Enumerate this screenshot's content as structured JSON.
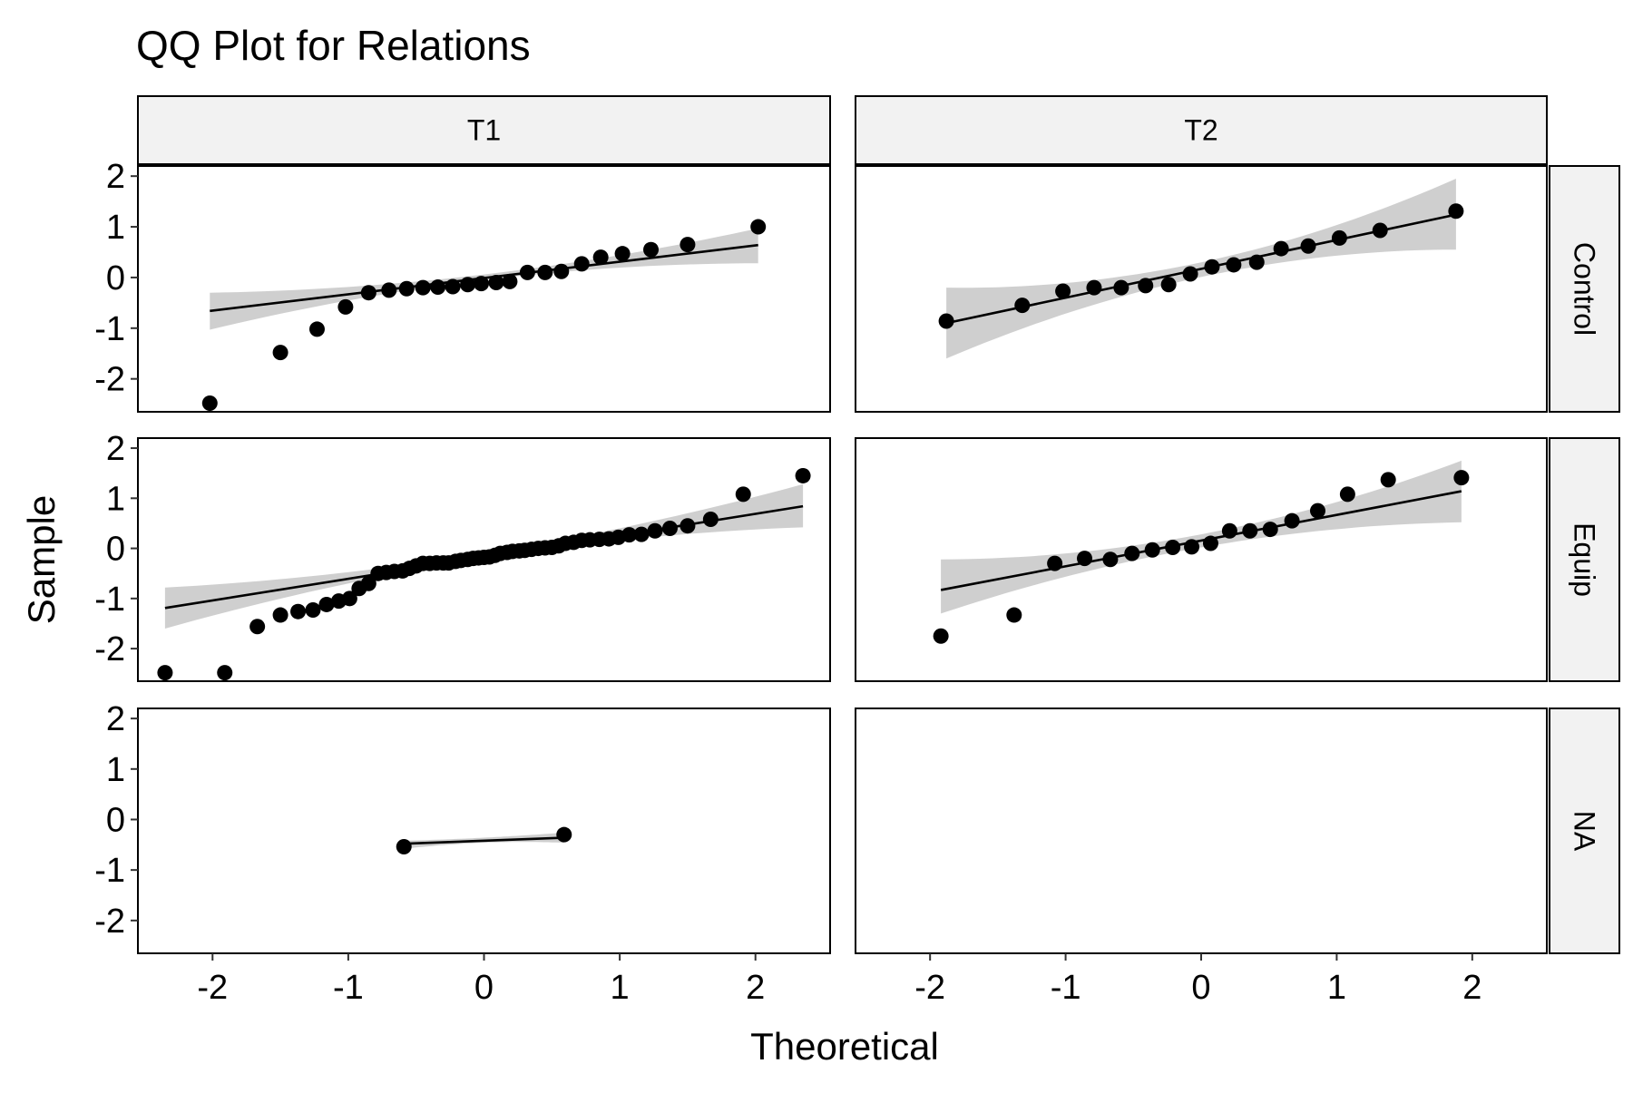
{
  "chart_data": {
    "type": "scatter",
    "title": "QQ Plot for Relations",
    "xlabel": "Theoretical",
    "ylabel": "Sample",
    "xlim": [
      -2.55,
      2.55
    ],
    "ylim": [
      -2.65,
      2.2
    ],
    "x_ticks": [
      -2,
      -1,
      0,
      1,
      2
    ],
    "x_tick_labels": [
      "-2",
      "-1",
      "0",
      "1",
      "2"
    ],
    "y_ticks": [
      -2,
      -1,
      0,
      1,
      2
    ],
    "y_tick_labels": [
      "-2",
      "-1",
      "0",
      "1",
      "2"
    ],
    "grid": false,
    "legend": "none",
    "colors": {
      "points": "#000000",
      "line": "#000000",
      "band": "#cccccc",
      "strip_fill": "#f2f2f2",
      "panel_border": "#000000"
    },
    "facet_columns": [
      "T1",
      "T2"
    ],
    "facet_rows": [
      "Control",
      "Equip",
      "NA"
    ],
    "panels": [
      {
        "col": "T1",
        "row": "Control",
        "points": [
          [
            -2.02,
            -2.48
          ],
          [
            -1.5,
            -1.48
          ],
          [
            -1.23,
            -1.02
          ],
          [
            -1.02,
            -0.58
          ],
          [
            -0.85,
            -0.3
          ],
          [
            -0.7,
            -0.25
          ],
          [
            -0.57,
            -0.22
          ],
          [
            -0.45,
            -0.2
          ],
          [
            -0.34,
            -0.19
          ],
          [
            -0.23,
            -0.18
          ],
          [
            -0.12,
            -0.14
          ],
          [
            -0.02,
            -0.12
          ],
          [
            0.09,
            -0.1
          ],
          [
            0.19,
            -0.08
          ],
          [
            0.32,
            0.1
          ],
          [
            0.45,
            0.1
          ],
          [
            0.57,
            0.12
          ],
          [
            0.72,
            0.27
          ],
          [
            0.86,
            0.4
          ],
          [
            1.02,
            0.47
          ],
          [
            1.23,
            0.55
          ],
          [
            1.5,
            0.65
          ],
          [
            2.02,
            1.0
          ]
        ],
        "line": [
          [
            -2.02,
            -0.66
          ],
          [
            2.02,
            0.64
          ]
        ],
        "band": {
          "x": [
            -2.02,
            0,
            2.02
          ],
          "lower": [
            -1.03,
            -0.05,
            0.28
          ],
          "upper": [
            -0.3,
            0.06,
            0.97
          ]
        }
      },
      {
        "col": "T2",
        "row": "Control",
        "points": [
          [
            -1.88,
            -0.86
          ],
          [
            -1.32,
            -0.55
          ],
          [
            -1.02,
            -0.27
          ],
          [
            -0.79,
            -0.2
          ],
          [
            -0.59,
            -0.2
          ],
          [
            -0.41,
            -0.16
          ],
          [
            -0.24,
            -0.14
          ],
          [
            -0.08,
            0.07
          ],
          [
            0.08,
            0.21
          ],
          [
            0.24,
            0.25
          ],
          [
            0.41,
            0.3
          ],
          [
            0.59,
            0.57
          ],
          [
            0.79,
            0.62
          ],
          [
            1.02,
            0.78
          ],
          [
            1.32,
            0.93
          ],
          [
            1.88,
            1.31
          ]
        ],
        "line": [
          [
            -1.88,
            -0.9
          ],
          [
            1.88,
            1.24
          ]
        ],
        "band": {
          "x": [
            -1.88,
            0,
            1.88
          ],
          "lower": [
            -1.6,
            0.01,
            0.55
          ],
          "upper": [
            -0.2,
            0.3,
            1.95
          ]
        }
      },
      {
        "col": "T1",
        "row": "Equip",
        "points": [
          [
            -2.35,
            -2.48
          ],
          [
            -1.91,
            -2.48
          ],
          [
            -1.67,
            -1.56
          ],
          [
            -1.5,
            -1.33
          ],
          [
            -1.37,
            -1.26
          ],
          [
            -1.26,
            -1.23
          ],
          [
            -1.16,
            -1.12
          ],
          [
            -1.07,
            -1.05
          ],
          [
            -0.99,
            -1.0
          ],
          [
            -0.92,
            -0.8
          ],
          [
            -0.85,
            -0.7
          ],
          [
            -0.78,
            -0.5
          ],
          [
            -0.72,
            -0.48
          ],
          [
            -0.66,
            -0.46
          ],
          [
            -0.6,
            -0.45
          ],
          [
            -0.55,
            -0.4
          ],
          [
            -0.5,
            -0.35
          ],
          [
            -0.45,
            -0.3
          ],
          [
            -0.4,
            -0.3
          ],
          [
            -0.35,
            -0.29
          ],
          [
            -0.3,
            -0.29
          ],
          [
            -0.26,
            -0.29
          ],
          [
            -0.21,
            -0.26
          ],
          [
            -0.17,
            -0.24
          ],
          [
            -0.12,
            -0.22
          ],
          [
            -0.08,
            -0.2
          ],
          [
            -0.04,
            -0.19
          ],
          [
            0.0,
            -0.18
          ],
          [
            0.04,
            -0.17
          ],
          [
            0.08,
            -0.14
          ],
          [
            0.12,
            -0.1
          ],
          [
            0.17,
            -0.08
          ],
          [
            0.21,
            -0.06
          ],
          [
            0.26,
            -0.05
          ],
          [
            0.3,
            -0.04
          ],
          [
            0.35,
            -0.02
          ],
          [
            0.4,
            0.0
          ],
          [
            0.45,
            0.01
          ],
          [
            0.5,
            0.02
          ],
          [
            0.55,
            0.05
          ],
          [
            0.6,
            0.1
          ],
          [
            0.66,
            0.12
          ],
          [
            0.72,
            0.16
          ],
          [
            0.78,
            0.17
          ],
          [
            0.85,
            0.18
          ],
          [
            0.92,
            0.19
          ],
          [
            0.99,
            0.22
          ],
          [
            1.07,
            0.27
          ],
          [
            1.16,
            0.28
          ],
          [
            1.26,
            0.35
          ],
          [
            1.37,
            0.4
          ],
          [
            1.5,
            0.45
          ],
          [
            1.67,
            0.58
          ],
          [
            1.91,
            1.08
          ],
          [
            2.35,
            1.45
          ]
        ],
        "line": [
          [
            -2.35,
            -1.19
          ],
          [
            2.35,
            0.84
          ]
        ],
        "band": {
          "x": [
            -2.35,
            0,
            2.35
          ],
          "lower": [
            -1.6,
            -0.2,
            0.42
          ],
          "upper": [
            -0.78,
            -0.1,
            1.28
          ]
        }
      },
      {
        "col": "T2",
        "row": "Equip",
        "points": [
          [
            -1.92,
            -1.75
          ],
          [
            -1.38,
            -1.33
          ],
          [
            -1.08,
            -0.3
          ],
          [
            -0.86,
            -0.2
          ],
          [
            -0.67,
            -0.22
          ],
          [
            -0.51,
            -0.1
          ],
          [
            -0.36,
            -0.03
          ],
          [
            -0.21,
            0.02
          ],
          [
            -0.07,
            0.03
          ],
          [
            0.07,
            0.1
          ],
          [
            0.21,
            0.35
          ],
          [
            0.36,
            0.35
          ],
          [
            0.51,
            0.38
          ],
          [
            0.67,
            0.55
          ],
          [
            0.86,
            0.75
          ],
          [
            1.08,
            1.08
          ],
          [
            1.38,
            1.37
          ],
          [
            1.92,
            1.41
          ]
        ],
        "line": [
          [
            -1.92,
            -0.83
          ],
          [
            1.92,
            1.14
          ]
        ],
        "band": {
          "x": [
            -1.92,
            0,
            1.92
          ],
          "lower": [
            -1.3,
            0.02,
            0.52
          ],
          "upper": [
            -0.22,
            0.28,
            1.75
          ]
        }
      },
      {
        "col": "T1",
        "row": "NA",
        "points": [
          [
            -0.59,
            -0.54
          ],
          [
            0.59,
            -0.3
          ]
        ],
        "line": [
          [
            -0.59,
            -0.48
          ],
          [
            0.59,
            -0.36
          ]
        ],
        "band": {
          "x": [
            -0.59,
            0,
            0.59
          ],
          "lower": [
            -0.58,
            -0.46,
            -0.46
          ],
          "upper": [
            -0.42,
            -0.36,
            -0.26
          ]
        }
      },
      {
        "col": "T2",
        "row": "NA",
        "points": [],
        "line": [],
        "band": null
      }
    ]
  }
}
